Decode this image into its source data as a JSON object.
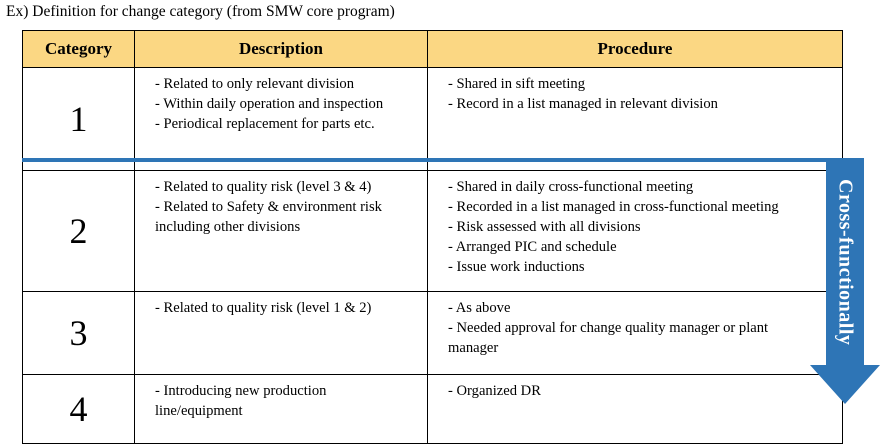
{
  "caption": "Ex) Definition for change category (from SMW core program)",
  "table": {
    "headers": [
      "Category",
      "Description",
      "Procedure"
    ],
    "rows": [
      {
        "category": "1",
        "description": [
          "- Related to only relevant division",
          "- Within daily operation and inspection",
          "- Periodical replacement for parts etc."
        ],
        "procedure": [
          "- Shared in sift meeting",
          "- Record in a list managed in relevant division"
        ]
      },
      {
        "category": "2",
        "description": [
          "- Related to quality risk (level 3 & 4)",
          "- Related to Safety & environment risk",
          "including  other divisions"
        ],
        "procedure": [
          "- Shared in daily cross-functional meeting",
          "- Recorded in a list managed in cross-functional meeting",
          "- Risk assessed with all divisions",
          "- Arranged PIC and schedule",
          "- Issue work inductions"
        ]
      },
      {
        "category": "3",
        "description": [
          "- Related to quality risk (level 1 & 2)"
        ],
        "procedure": [
          "- As above",
          "- Needed approval for change quality manager or plant",
          "manager"
        ]
      },
      {
        "category": "4",
        "description": [
          "- Introducing  new production",
          "line/equipment"
        ],
        "procedure": [
          "- Organized DR"
        ]
      }
    ]
  },
  "arrow": {
    "label": "Cross-functionally",
    "color": "#2e75b6"
  },
  "colors": {
    "header_background": "#fbd783",
    "divider": "#2e75b6"
  }
}
